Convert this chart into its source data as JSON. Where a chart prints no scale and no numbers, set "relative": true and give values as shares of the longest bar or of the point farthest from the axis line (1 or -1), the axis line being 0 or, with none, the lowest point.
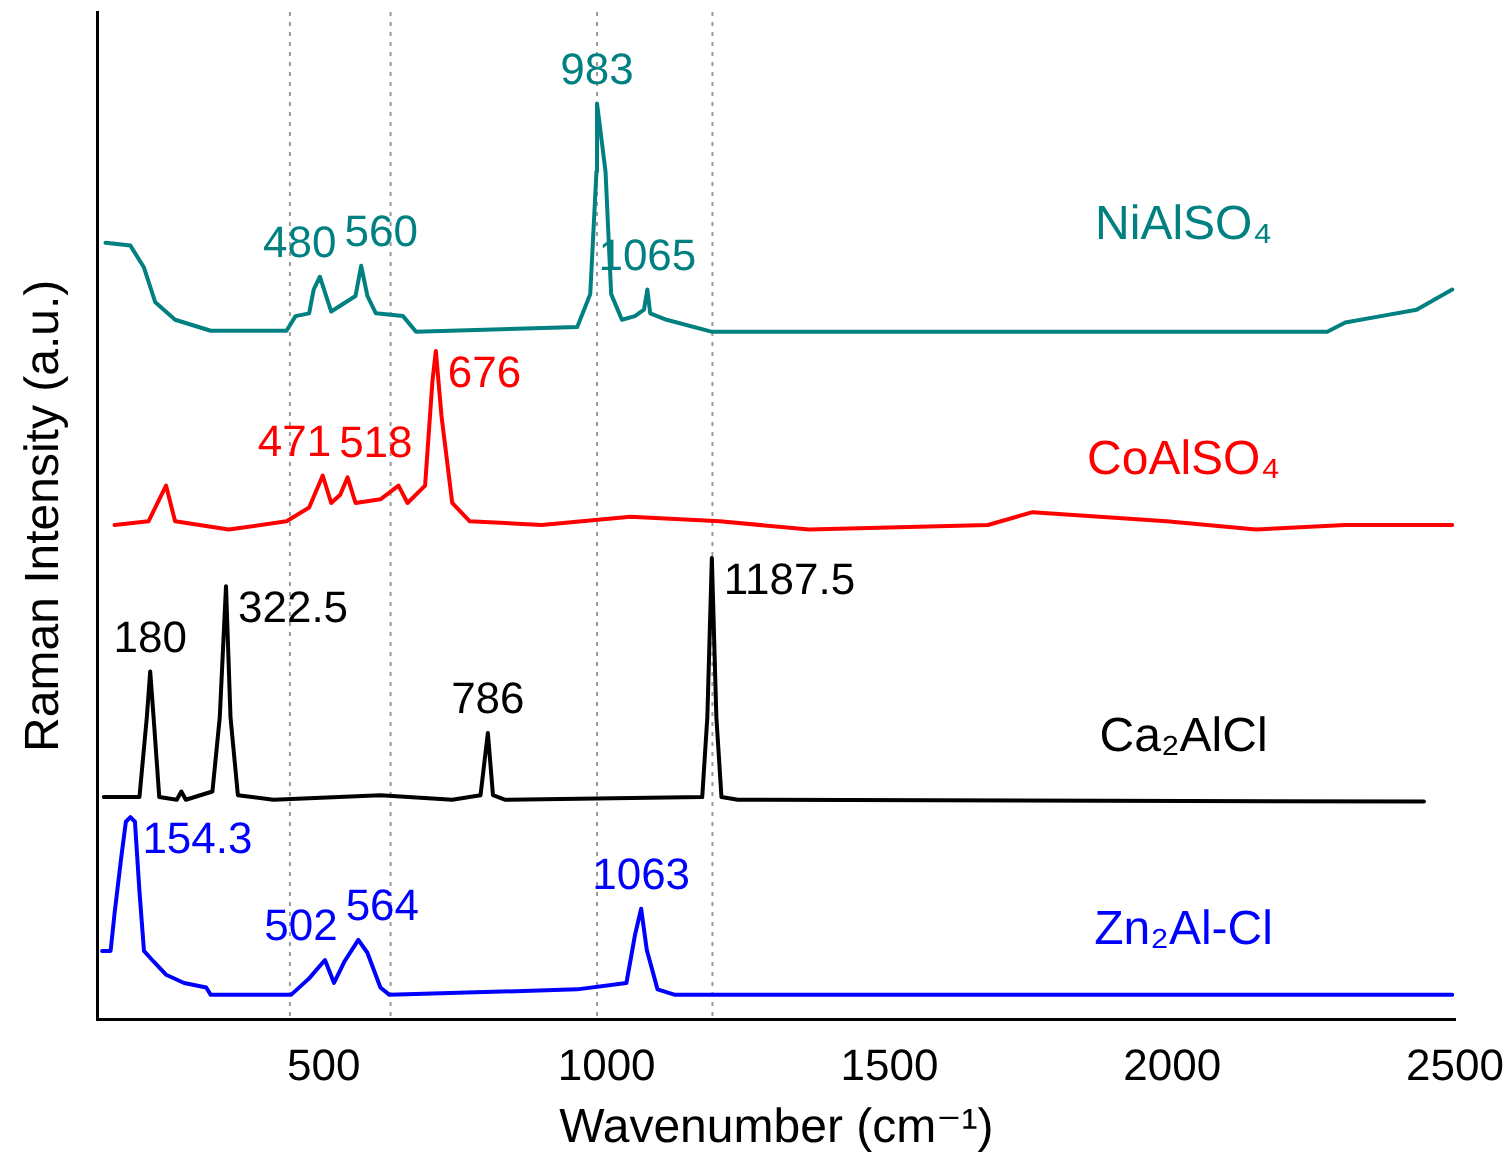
{
  "chart_data": {
    "type": "line",
    "relative": true,
    "xlabel": "Wavenumber (cm⁻¹)",
    "ylabel": "Raman Intensity (a.u.)",
    "xlim": [
      100,
      2500
    ],
    "xticks": [
      500,
      1000,
      1500,
      2000,
      2500
    ],
    "grid": false,
    "legend": false,
    "marker": "none",
    "line_style": "solid",
    "series": [
      {
        "name": "NiAlSO₄",
        "color": "#008080",
        "x": [
          114,
          158,
          182,
          202,
          237,
          300,
          434,
          450,
          474,
          482,
          493,
          502,
          513,
          556,
          566,
          577,
          592,
          640,
          663,
          948,
          971,
          982,
          983,
          998,
          1008,
          1027,
          1050,
          1066,
          1072,
          1077,
          1106,
          1185,
          2274,
          2306,
          2369,
          2432,
          2495
        ],
        "values": [
          0.848,
          0.845,
          0.821,
          0.783,
          0.764,
          0.752,
          0.752,
          0.768,
          0.771,
          0.797,
          0.811,
          0.794,
          0.773,
          0.79,
          0.823,
          0.79,
          0.771,
          0.768,
          0.751,
          0.756,
          0.792,
          0.926,
          1.0,
          0.926,
          0.792,
          0.764,
          0.768,
          0.775,
          0.797,
          0.771,
          0.764,
          0.751,
          0.751,
          0.761,
          0.768,
          0.775,
          0.797
        ]
      },
      {
        "name": "CoAlSO₄",
        "color": "#ff0000",
        "x": [
          130,
          190,
          221,
          237,
          332,
          434,
          474,
          498,
          513,
          529,
          542,
          556,
          600,
          632,
          648,
          679,
          692,
          698,
          708,
          727,
          758,
          885,
          1042,
          1200,
          1358,
          1674,
          1753,
          1990,
          2148,
          2306,
          2495
        ],
        "values": [
          0.54,
          0.544,
          0.583,
          0.544,
          0.535,
          0.544,
          0.559,
          0.594,
          0.564,
          0.573,
          0.592,
          0.564,
          0.568,
          0.583,
          0.564,
          0.583,
          0.697,
          0.73,
          0.659,
          0.564,
          0.544,
          0.54,
          0.549,
          0.544,
          0.535,
          0.54,
          0.554,
          0.544,
          0.535,
          0.54,
          0.54
        ]
      },
      {
        "name": "Ca₂AlCl",
        "color": "#000000",
        "x": [
          111,
          174,
          187,
          193,
          199,
          209,
          240,
          248,
          256,
          303,
          316,
          327,
          335,
          348,
          411,
          600,
          727,
          777,
          790,
          799,
          821,
          1169,
          1178,
          1186,
          1194,
          1203,
          1232,
          2445
        ],
        "values": [
          0.243,
          0.243,
          0.33,
          0.38,
          0.33,
          0.243,
          0.24,
          0.249,
          0.24,
          0.249,
          0.33,
          0.473,
          0.33,
          0.245,
          0.24,
          0.245,
          0.24,
          0.245,
          0.313,
          0.245,
          0.24,
          0.243,
          0.33,
          0.504,
          0.33,
          0.243,
          0.24,
          0.238
        ]
      },
      {
        "name": "Zn₂Al-Cl",
        "color": "#0000ff",
        "x": [
          108,
          123,
          130,
          142,
          150,
          158,
          166,
          174,
          182,
          198,
          221,
          253,
          292,
          300,
          442,
          474,
          502,
          518,
          537,
          561,
          577,
          600,
          616,
          948,
          1035,
          1050,
          1061,
          1071,
          1090,
          1121,
          2495
        ],
        "values": [
          0.075,
          0.075,
          0.116,
          0.178,
          0.216,
          0.221,
          0.216,
          0.14,
          0.075,
          0.064,
          0.049,
          0.04,
          0.035,
          0.027,
          0.027,
          0.045,
          0.065,
          0.04,
          0.064,
          0.087,
          0.073,
          0.035,
          0.027,
          0.033,
          0.04,
          0.092,
          0.121,
          0.076,
          0.033,
          0.027,
          0.027
        ]
      }
    ],
    "ref_lines": [
      {
        "axis": "x",
        "value": 440,
        "color": "#999999",
        "line_style": "dotted"
      },
      {
        "axis": "x",
        "value": 618,
        "color": "#999999",
        "line_style": "dotted"
      },
      {
        "axis": "x",
        "value": 983,
        "color": "#999999",
        "line_style": "dotted"
      },
      {
        "axis": "x",
        "value": 1187,
        "color": "#999999",
        "line_style": "dotted"
      }
    ],
    "annotations": [
      {
        "text": "983",
        "x": 983,
        "y": 1.0
      },
      {
        "text": "480",
        "x": 493,
        "y": 0.811
      },
      {
        "text": "560",
        "x": 566,
        "y": 0.823
      },
      {
        "text": "1065",
        "x": 1072,
        "y": 0.797
      },
      {
        "text": "471",
        "x": 498,
        "y": 0.594
      },
      {
        "text": "518",
        "x": 542,
        "y": 0.592
      },
      {
        "text": "676",
        "x": 698,
        "y": 0.73
      },
      {
        "text": "180",
        "x": 193,
        "y": 0.38
      },
      {
        "text": "322.5",
        "x": 327,
        "y": 0.473
      },
      {
        "text": "786",
        "x": 790,
        "y": 0.313
      },
      {
        "text": "1187.5",
        "x": 1186,
        "y": 0.504
      },
      {
        "text": "154.3",
        "x": 158,
        "y": 0.221
      },
      {
        "text": "502",
        "x": 502,
        "y": 0.065
      },
      {
        "text": "564",
        "x": 561,
        "y": 0.087
      },
      {
        "text": "1063",
        "x": 1061,
        "y": 0.121
      }
    ]
  }
}
